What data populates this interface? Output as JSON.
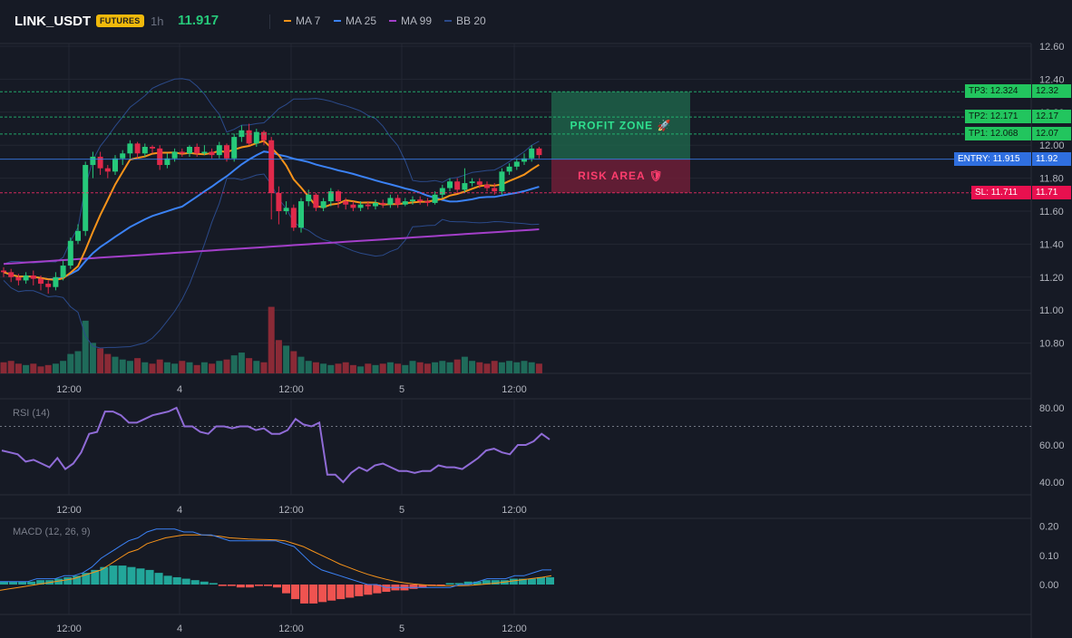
{
  "header": {
    "symbol": "LINK_USDT",
    "badge": "FUTURES",
    "timeframe": "1h",
    "last_price": "11.917",
    "legend": [
      {
        "label": "MA 7",
        "color": "#f7931a"
      },
      {
        "label": "MA 25",
        "color": "#3b82f6"
      },
      {
        "label": "MA 99",
        "color": "#a33fc9"
      },
      {
        "label": "BB 20",
        "color": "#2b4a8a"
      }
    ]
  },
  "colors": {
    "up": "#26c97a",
    "down": "#e0294a",
    "vol_up": "#1f6b5a",
    "vol_down": "#8a2a36",
    "grid": "#232733",
    "axis_text": "#b2b5be",
    "rsi": "#8f6bd6",
    "macd": "#3b82f6",
    "signal": "#f7931a",
    "hist_up": "#22a69a",
    "hist_down": "#ef5350"
  },
  "levels": {
    "tp3": {
      "label": "TP3: 12.324",
      "axis": "12.32",
      "value": 12.324
    },
    "tp2": {
      "label": "TP2: 12.171",
      "axis": "12.17",
      "value": 12.171
    },
    "tp1": {
      "label": "TP1: 12.068",
      "axis": "12.07",
      "value": 12.068
    },
    "entry": {
      "label": "ENTRY: 11.915",
      "axis": "11.92",
      "value": 11.915
    },
    "sl": {
      "label": "SL: 11.711",
      "axis": "11.71",
      "value": 11.711
    }
  },
  "zones": {
    "profit": "PROFIT ZONE 🚀",
    "risk": "RISK AREA 🛡"
  },
  "chart_data": [
    {
      "type": "candlestick",
      "title": "LINK_USDT 1h",
      "x_ticks": [
        "12:00",
        "4",
        "12:00",
        "5",
        "12:00"
      ],
      "y_ticks": [
        "12.60",
        "12.40",
        "12.20",
        "12.00",
        "11.80",
        "11.60",
        "11.40",
        "11.20",
        "11.00",
        "10.80"
      ],
      "ylim": [
        10.6,
        12.6
      ],
      "candles": [
        [
          11.24,
          11.23,
          11.26,
          11.2
        ],
        [
          11.23,
          11.2,
          11.25,
          11.17
        ],
        [
          11.2,
          11.18,
          11.22,
          11.15
        ],
        [
          11.18,
          11.21,
          11.23,
          11.16
        ],
        [
          11.21,
          11.19,
          11.24,
          11.15
        ],
        [
          11.19,
          11.16,
          11.21,
          11.12
        ],
        [
          11.16,
          11.14,
          11.18,
          11.1
        ],
        [
          11.14,
          11.2,
          11.23,
          11.12
        ],
        [
          11.2,
          11.27,
          11.3,
          11.18
        ],
        [
          11.27,
          11.42,
          11.44,
          11.25
        ],
        [
          11.42,
          11.48,
          11.52,
          11.4
        ],
        [
          11.48,
          11.88,
          11.9,
          11.45
        ],
        [
          11.88,
          11.93,
          11.96,
          11.8
        ],
        [
          11.93,
          11.86,
          11.96,
          11.82
        ],
        [
          11.86,
          11.84,
          11.88,
          11.8
        ],
        [
          11.84,
          11.92,
          11.94,
          11.82
        ],
        [
          11.92,
          11.95,
          11.97,
          11.88
        ],
        [
          11.95,
          12.01,
          12.03,
          11.92
        ],
        [
          12.01,
          11.95,
          12.02,
          11.92
        ],
        [
          11.95,
          11.99,
          12.01,
          11.93
        ],
        [
          11.99,
          11.98,
          12.0,
          11.95
        ],
        [
          11.98,
          11.88,
          12.0,
          11.85
        ],
        [
          11.88,
          11.92,
          11.95,
          11.86
        ],
        [
          11.92,
          11.96,
          11.98,
          11.9
        ],
        [
          11.96,
          11.95,
          11.98,
          11.93
        ],
        [
          11.95,
          11.99,
          12.0,
          11.93
        ],
        [
          11.99,
          11.95,
          12.01,
          11.93
        ],
        [
          11.95,
          11.96,
          12.0,
          11.94
        ],
        [
          11.96,
          11.94,
          11.98,
          11.92
        ],
        [
          11.94,
          12.0,
          12.02,
          11.92
        ],
        [
          12.0,
          11.92,
          12.01,
          11.9
        ],
        [
          11.92,
          12.05,
          12.07,
          11.9
        ],
        [
          12.05,
          12.09,
          12.12,
          12.02
        ],
        [
          12.09,
          12.01,
          12.13,
          12.0
        ],
        [
          12.01,
          12.08,
          12.1,
          11.99
        ],
        [
          12.08,
          12.03,
          12.09,
          12.0
        ],
        [
          12.03,
          11.71,
          12.05,
          11.55
        ],
        [
          11.71,
          11.6,
          11.75,
          11.52
        ],
        [
          11.6,
          11.62,
          11.66,
          11.58
        ],
        [
          11.62,
          11.5,
          11.64,
          11.48
        ],
        [
          11.5,
          11.66,
          11.68,
          11.47
        ],
        [
          11.66,
          11.7,
          11.73,
          11.63
        ],
        [
          11.7,
          11.62,
          11.71,
          11.6
        ],
        [
          11.62,
          11.66,
          11.68,
          11.6
        ],
        [
          11.66,
          11.72,
          11.74,
          11.63
        ],
        [
          11.72,
          11.66,
          11.73,
          11.62
        ],
        [
          11.66,
          11.64,
          11.68,
          11.61
        ],
        [
          11.64,
          11.62,
          11.66,
          11.6
        ],
        [
          11.62,
          11.64,
          11.66,
          11.6
        ],
        [
          11.64,
          11.63,
          11.66,
          11.61
        ],
        [
          11.63,
          11.65,
          11.67,
          11.61
        ],
        [
          11.65,
          11.64,
          11.67,
          11.62
        ],
        [
          11.64,
          11.68,
          11.7,
          11.62
        ],
        [
          11.68,
          11.64,
          11.7,
          11.62
        ],
        [
          11.64,
          11.66,
          11.68,
          11.63
        ],
        [
          11.66,
          11.67,
          11.69,
          11.64
        ],
        [
          11.67,
          11.66,
          11.69,
          11.64
        ],
        [
          11.66,
          11.65,
          11.68,
          11.63
        ],
        [
          11.65,
          11.7,
          11.72,
          11.64
        ],
        [
          11.7,
          11.74,
          11.76,
          11.68
        ],
        [
          11.74,
          11.78,
          11.8,
          11.72
        ],
        [
          11.78,
          11.73,
          11.8,
          11.71
        ],
        [
          11.73,
          11.77,
          11.86,
          11.71
        ],
        [
          11.77,
          11.78,
          11.8,
          11.75
        ],
        [
          11.78,
          11.76,
          11.8,
          11.74
        ],
        [
          11.76,
          11.74,
          11.78,
          11.72
        ],
        [
          11.74,
          11.72,
          11.77,
          11.7
        ],
        [
          11.72,
          11.84,
          11.86,
          11.7
        ],
        [
          11.84,
          11.87,
          11.89,
          11.82
        ],
        [
          11.87,
          11.9,
          11.92,
          11.85
        ],
        [
          11.9,
          11.92,
          11.95,
          11.88
        ],
        [
          11.92,
          11.98,
          12.0,
          11.9
        ],
        [
          11.98,
          11.94,
          11.99,
          11.92
        ]
      ],
      "volume": [
        8,
        9,
        7,
        6,
        7,
        5,
        6,
        7,
        9,
        14,
        16,
        38,
        22,
        18,
        14,
        12,
        10,
        9,
        11,
        8,
        7,
        10,
        8,
        7,
        9,
        8,
        6,
        8,
        7,
        9,
        10,
        13,
        15,
        11,
        9,
        8,
        48,
        24,
        20,
        16,
        12,
        9,
        8,
        7,
        6,
        7,
        8,
        6,
        5,
        7,
        6,
        7,
        8,
        7,
        6,
        9,
        8,
        7,
        8,
        9,
        8,
        10,
        12,
        9,
        8,
        7,
        9,
        8,
        9,
        8,
        9,
        8,
        7
      ],
      "series": [
        {
          "name": "MA 7"
        },
        {
          "name": "MA 25"
        },
        {
          "name": "MA 99"
        },
        {
          "name": "BB 20"
        }
      ]
    },
    {
      "type": "line",
      "title": "RSI (14)",
      "y_ticks": [
        "80.00",
        "60.00",
        "40.00"
      ],
      "ylim": [
        33,
        83
      ],
      "overbought": 70,
      "values": [
        57,
        56,
        55,
        51,
        52,
        50,
        48,
        53,
        47,
        50,
        56,
        66,
        67,
        78,
        78,
        76,
        72,
        72,
        74,
        76,
        77,
        78,
        80,
        70,
        70,
        67,
        66,
        70,
        70,
        69,
        70,
        70,
        68,
        69,
        66,
        66,
        68,
        74,
        71,
        70,
        72,
        44,
        44,
        40,
        45,
        48,
        46,
        49,
        50,
        48,
        46,
        46,
        45,
        46,
        46,
        49,
        48,
        48,
        47,
        50,
        53,
        57,
        58,
        56,
        55,
        60,
        60,
        62,
        66,
        63
      ],
      "x_ticks": [
        "12:00",
        "4",
        "12:00",
        "5",
        "12:00"
      ]
    },
    {
      "type": "line",
      "title": "MACD (12, 26, 9)",
      "y_ticks": [
        "0.20",
        "0.10",
        "0.00"
      ],
      "ylim": [
        -0.08,
        0.22
      ],
      "x_ticks": [
        "12:00",
        "4",
        "12:00",
        "5",
        "12:00"
      ],
      "series": [
        {
          "name": "MACD",
          "values": [
            0.01,
            0.01,
            0.01,
            0.01,
            0.02,
            0.02,
            0.02,
            0.03,
            0.03,
            0.04,
            0.06,
            0.09,
            0.11,
            0.13,
            0.15,
            0.16,
            0.18,
            0.19,
            0.19,
            0.19,
            0.18,
            0.18,
            0.17,
            0.17,
            0.16,
            0.15,
            0.15,
            0.15,
            0.15,
            0.15,
            0.15,
            0.14,
            0.13,
            0.1,
            0.07,
            0.05,
            0.04,
            0.03,
            0.02,
            0.01,
            0.0,
            0.0,
            -0.01,
            -0.01,
            -0.01,
            -0.01,
            -0.01,
            -0.01,
            -0.01,
            -0.01,
            0.0,
            0.0,
            0.01,
            0.02,
            0.02,
            0.02,
            0.03,
            0.03,
            0.04,
            0.05,
            0.05
          ]
        },
        {
          "name": "Signal",
          "values": [
            -0.02,
            -0.015,
            -0.01,
            -0.005,
            0.0,
            0.005,
            0.01,
            0.015,
            0.02,
            0.03,
            0.04,
            0.05,
            0.07,
            0.09,
            0.11,
            0.12,
            0.14,
            0.15,
            0.16,
            0.165,
            0.17,
            0.17,
            0.17,
            0.168,
            0.165,
            0.16,
            0.158,
            0.156,
            0.155,
            0.154,
            0.153,
            0.15,
            0.14,
            0.13,
            0.115,
            0.1,
            0.085,
            0.07,
            0.058,
            0.046,
            0.035,
            0.026,
            0.018,
            0.011,
            0.006,
            0.002,
            -0.001,
            -0.003,
            -0.004,
            -0.004,
            -0.004,
            -0.003,
            -0.001,
            0.002,
            0.005,
            0.009,
            0.013,
            0.017,
            0.021,
            0.025,
            0.03
          ]
        },
        {
          "name": "Histogram",
          "values": [
            0.01,
            0.01,
            0.01,
            0.01,
            0.015,
            0.015,
            0.02,
            0.025,
            0.03,
            0.04,
            0.05,
            0.06,
            0.065,
            0.065,
            0.06,
            0.055,
            0.05,
            0.04,
            0.03,
            0.025,
            0.02,
            0.015,
            0.01,
            0.005,
            -0.005,
            -0.005,
            -0.01,
            -0.01,
            -0.005,
            -0.005,
            -0.01,
            -0.03,
            -0.05,
            -0.065,
            -0.065,
            -0.06,
            -0.055,
            -0.05,
            -0.045,
            -0.04,
            -0.035,
            -0.03,
            -0.025,
            -0.02,
            -0.02,
            -0.015,
            -0.01,
            -0.005,
            -0.005,
            0.005,
            0.005,
            0.01,
            0.01,
            0.015,
            0.015,
            0.015,
            0.02,
            0.02,
            0.02,
            0.025,
            0.025
          ]
        }
      ]
    }
  ]
}
